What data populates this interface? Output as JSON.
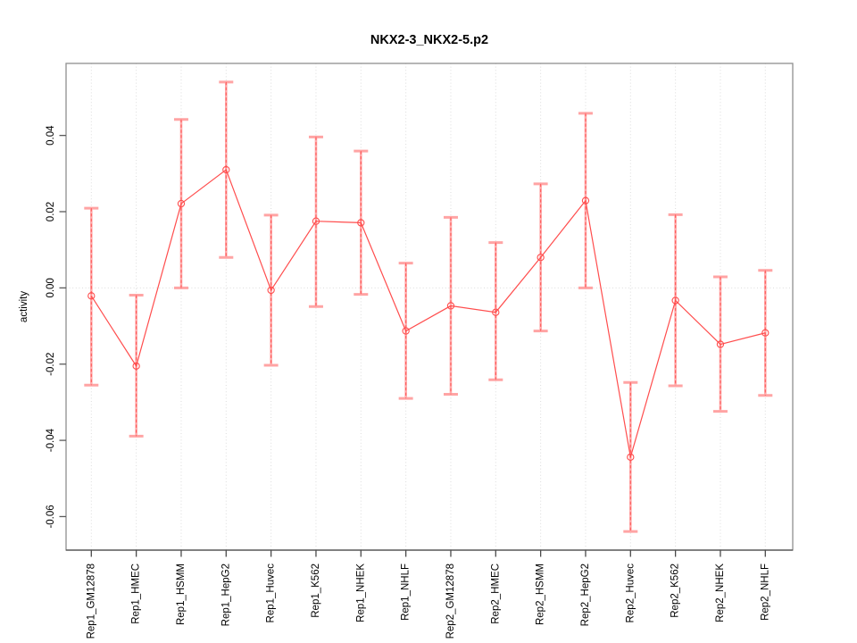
{
  "figure": {
    "title": "NKX2-3_NKX2-5.p2",
    "background": "#ffffff"
  },
  "chart_data": {
    "type": "line",
    "title": "NKX2-3_NKX2-5.p2",
    "xlabel": "",
    "ylabel": "activity",
    "legend": "none",
    "grid": "vertical-dotted-and-zero-line",
    "categories": [
      "Rep1_GM12878",
      "Rep1_HMEC",
      "Rep1_HSMM",
      "Rep1_HepG2",
      "Rep1_Huvec",
      "Rep1_K562",
      "Rep1_NHEK",
      "Rep1_NHLF",
      "Rep2_GM12878",
      "Rep2_HMEC",
      "Rep2_HSMM",
      "Rep2_HepG2",
      "Rep2_Huvec",
      "Rep2_K562",
      "Rep2_NHEK",
      "Rep2_NHLF"
    ],
    "series": [
      {
        "name": "activity",
        "marker": "open-circle",
        "values": [
          -0.0021,
          -0.0205,
          0.0221,
          0.031,
          -0.0006,
          0.0175,
          0.0171,
          -0.0113,
          -0.0047,
          -0.0064,
          0.008,
          0.0229,
          -0.0444,
          -0.0033,
          -0.0148,
          -0.0118
        ],
        "ci_low": [
          -0.0255,
          -0.0389,
          0.0,
          0.008,
          -0.0203,
          -0.0049,
          -0.0017,
          -0.029,
          -0.0279,
          -0.0241,
          -0.0113,
          0.0,
          -0.0639,
          -0.0257,
          -0.0324,
          -0.0282
        ],
        "ci_high": [
          0.0209,
          -0.0019,
          0.0442,
          0.054,
          0.0191,
          0.0396,
          0.0359,
          0.0065,
          0.0185,
          0.0119,
          0.0273,
          0.0458,
          -0.0248,
          0.0192,
          0.0029,
          0.0046
        ]
      }
    ],
    "ylim": [
      -0.0688,
      0.0589
    ],
    "yticks": [
      0.04,
      0.02,
      0.0,
      -0.02,
      -0.04,
      -0.06
    ],
    "ytick_labels": [
      "0.04",
      "0.02",
      "0.00",
      "-0.02",
      "-0.04",
      "-0.06"
    ],
    "colors": {
      "line": "#ff4d4d",
      "marker": "#ff4d4d",
      "error_line": "#ff5a5a",
      "error_underlay": "#ffabab",
      "error_cap": "#ffa4a4",
      "gridline": "#dcdcdc",
      "zero_line": "#dcdcdc",
      "box": "#8f8f8f",
      "axis": "#4a4a4a",
      "tick": "#5a5a5a",
      "text": "#000000"
    }
  }
}
